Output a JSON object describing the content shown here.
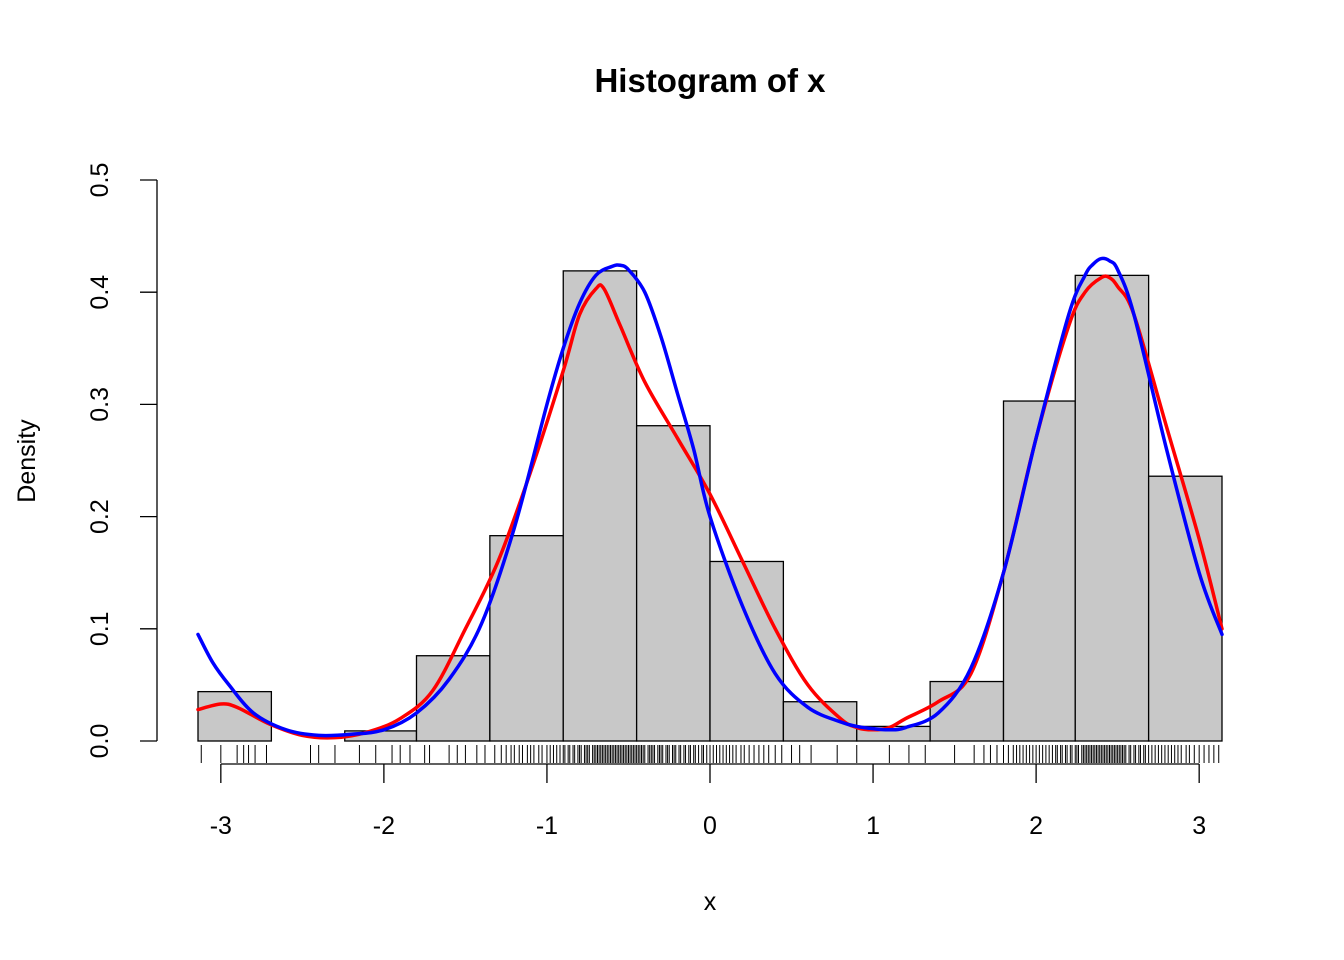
{
  "chart_data": {
    "type": "bar",
    "title": "Histogram of x",
    "xlabel": "x",
    "ylabel": "Density",
    "xlim": [
      -3.14,
      3.14
    ],
    "ylim": [
      0,
      0.5
    ],
    "x_ticks": [
      "-3",
      "-2",
      "-1",
      "0",
      "1",
      "2",
      "3"
    ],
    "y_ticks": [
      "0.0",
      "0.1",
      "0.2",
      "0.3",
      "0.4",
      "0.5"
    ],
    "grid": false,
    "bars": [
      {
        "x0": -3.14,
        "x1": -2.69,
        "density": 0.044
      },
      {
        "x0": -2.69,
        "x1": -2.24,
        "density": 0.0
      },
      {
        "x0": -2.24,
        "x1": -1.8,
        "density": 0.009
      },
      {
        "x0": -1.8,
        "x1": -1.35,
        "density": 0.076
      },
      {
        "x0": -1.35,
        "x1": -0.9,
        "density": 0.183
      },
      {
        "x0": -0.9,
        "x1": -0.45,
        "density": 0.419
      },
      {
        "x0": -0.45,
        "x1": 0.0,
        "density": 0.281
      },
      {
        "x0": 0.0,
        "x1": 0.45,
        "density": 0.16
      },
      {
        "x0": 0.45,
        "x1": 0.9,
        "density": 0.035
      },
      {
        "x0": 0.9,
        "x1": 1.35,
        "density": 0.013
      },
      {
        "x0": 1.35,
        "x1": 1.8,
        "density": 0.053
      },
      {
        "x0": 1.8,
        "x1": 2.24,
        "density": 0.303
      },
      {
        "x0": 2.24,
        "x1": 2.69,
        "density": 0.415
      },
      {
        "x0": 2.69,
        "x1": 3.14,
        "density": 0.236
      }
    ],
    "series": [
      {
        "color": "#ff0000",
        "x": [
          -3.14,
          -3.0,
          -2.9,
          -2.7,
          -2.5,
          -2.3,
          -2.1,
          -1.9,
          -1.7,
          -1.5,
          -1.3,
          -1.1,
          -0.9,
          -0.8,
          -0.7,
          -0.65,
          -0.55,
          -0.4,
          -0.2,
          0.0,
          0.2,
          0.4,
          0.6,
          0.8,
          0.9,
          1.0,
          1.1,
          1.2,
          1.4,
          1.6,
          1.8,
          2.0,
          2.2,
          2.3,
          2.4,
          2.45,
          2.5,
          2.6,
          2.8,
          3.0,
          3.14
        ],
        "y": [
          0.028,
          0.033,
          0.03,
          0.015,
          0.005,
          0.003,
          0.008,
          0.02,
          0.045,
          0.1,
          0.16,
          0.24,
          0.33,
          0.38,
          0.403,
          0.403,
          0.37,
          0.32,
          0.27,
          0.22,
          0.16,
          0.1,
          0.05,
          0.02,
          0.012,
          0.01,
          0.012,
          0.02,
          0.035,
          0.06,
          0.15,
          0.27,
          0.37,
          0.4,
          0.413,
          0.413,
          0.405,
          0.38,
          0.28,
          0.18,
          0.1
        ]
      },
      {
        "color": "#0000ff",
        "x": [
          -3.14,
          -3.05,
          -2.95,
          -2.8,
          -2.6,
          -2.4,
          -2.2,
          -2.0,
          -1.8,
          -1.6,
          -1.4,
          -1.2,
          -1.0,
          -0.9,
          -0.8,
          -0.7,
          -0.6,
          -0.55,
          -0.5,
          -0.4,
          -0.3,
          -0.2,
          -0.1,
          0.0,
          0.2,
          0.4,
          0.6,
          0.8,
          0.9,
          1.0,
          1.1,
          1.2,
          1.4,
          1.6,
          1.8,
          2.0,
          2.2,
          2.3,
          2.35,
          2.4,
          2.45,
          2.5,
          2.6,
          2.8,
          3.0,
          3.14
        ],
        "y": [
          0.095,
          0.07,
          0.05,
          0.025,
          0.01,
          0.005,
          0.006,
          0.01,
          0.025,
          0.055,
          0.105,
          0.19,
          0.3,
          0.35,
          0.39,
          0.415,
          0.423,
          0.424,
          0.42,
          0.4,
          0.36,
          0.31,
          0.26,
          0.2,
          0.12,
          0.06,
          0.03,
          0.017,
          0.013,
          0.011,
          0.01,
          0.012,
          0.025,
          0.065,
          0.15,
          0.27,
          0.38,
          0.415,
          0.425,
          0.43,
          0.428,
          0.42,
          0.38,
          0.26,
          0.15,
          0.095
        ]
      }
    ],
    "rug": [
      -3.12,
      -3.0,
      -2.9,
      -2.86,
      -2.83,
      -2.79,
      -2.72,
      -2.45,
      -2.4,
      -2.3,
      -2.15,
      -2.05,
      -1.95,
      -1.9,
      -1.84,
      -1.75,
      -1.72,
      -1.6,
      -1.55,
      -1.5,
      -1.43,
      -1.38,
      -1.32,
      -1.28,
      -1.25,
      -1.22,
      -1.2,
      -1.17,
      -1.15,
      -1.12,
      -1.1,
      -1.08,
      -1.05,
      -1.03,
      -1.0,
      -0.98,
      -0.96,
      -0.94,
      -0.92,
      -0.9,
      -0.89,
      -0.87,
      -0.86,
      -0.84,
      -0.83,
      -0.81,
      -0.8,
      -0.79,
      -0.77,
      -0.76,
      -0.75,
      -0.74,
      -0.72,
      -0.71,
      -0.7,
      -0.69,
      -0.68,
      -0.67,
      -0.66,
      -0.65,
      -0.64,
      -0.63,
      -0.62,
      -0.61,
      -0.6,
      -0.59,
      -0.58,
      -0.57,
      -0.56,
      -0.55,
      -0.54,
      -0.53,
      -0.52,
      -0.51,
      -0.5,
      -0.49,
      -0.48,
      -0.47,
      -0.46,
      -0.45,
      -0.44,
      -0.43,
      -0.42,
      -0.41,
      -0.4,
      -0.38,
      -0.37,
      -0.36,
      -0.35,
      -0.34,
      -0.32,
      -0.31,
      -0.3,
      -0.29,
      -0.27,
      -0.26,
      -0.25,
      -0.23,
      -0.22,
      -0.21,
      -0.19,
      -0.18,
      -0.16,
      -0.15,
      -0.13,
      -0.12,
      -0.1,
      -0.09,
      -0.07,
      -0.05,
      -0.04,
      -0.02,
      0.0,
      0.02,
      0.04,
      0.06,
      0.08,
      0.1,
      0.12,
      0.14,
      0.16,
      0.19,
      0.21,
      0.24,
      0.27,
      0.3,
      0.33,
      0.36,
      0.4,
      0.44,
      0.5,
      0.55,
      0.62,
      0.78,
      0.9,
      1.1,
      1.22,
      1.32,
      1.5,
      1.62,
      1.68,
      1.72,
      1.76,
      1.8,
      1.83,
      1.86,
      1.88,
      1.9,
      1.92,
      1.94,
      1.96,
      1.98,
      2.0,
      2.02,
      2.04,
      2.06,
      2.08,
      2.1,
      2.12,
      2.13,
      2.15,
      2.16,
      2.18,
      2.19,
      2.21,
      2.22,
      2.24,
      2.25,
      2.26,
      2.28,
      2.29,
      2.3,
      2.31,
      2.32,
      2.33,
      2.34,
      2.35,
      2.36,
      2.37,
      2.38,
      2.39,
      2.4,
      2.41,
      2.42,
      2.43,
      2.44,
      2.45,
      2.46,
      2.47,
      2.48,
      2.49,
      2.5,
      2.51,
      2.52,
      2.53,
      2.54,
      2.55,
      2.57,
      2.58,
      2.6,
      2.61,
      2.63,
      2.64,
      2.66,
      2.67,
      2.69,
      2.71,
      2.73,
      2.75,
      2.77,
      2.79,
      2.81,
      2.83,
      2.85,
      2.87,
      2.89,
      2.92,
      2.94,
      2.97,
      3.0,
      3.03,
      3.06,
      3.09,
      3.12
    ]
  }
}
